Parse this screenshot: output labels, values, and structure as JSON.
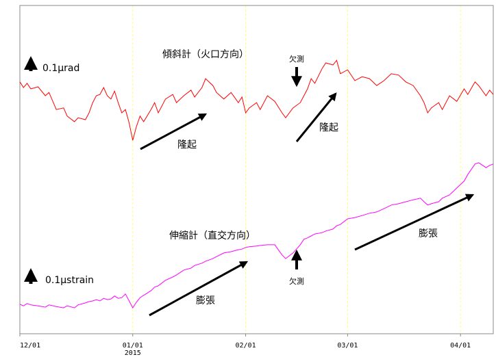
{
  "chart_data": {
    "type": "line",
    "x": [
      0,
      1,
      2,
      3,
      5,
      7,
      8,
      10,
      12,
      13,
      15,
      16,
      18,
      19,
      20,
      21,
      22,
      23,
      24,
      25,
      26,
      27,
      28,
      29,
      30,
      31,
      32,
      33,
      34,
      36,
      37,
      38,
      40,
      42,
      43,
      45,
      47,
      48,
      50,
      51,
      53,
      54,
      56,
      58,
      60,
      61,
      62,
      63,
      65,
      66,
      68,
      70,
      72,
      73,
      75,
      77,
      78,
      79,
      80,
      81,
      83,
      84,
      86,
      87,
      88,
      90,
      92,
      94,
      96,
      98,
      100,
      102,
      104,
      106,
      108,
      110,
      111,
      112,
      113,
      115,
      116,
      118,
      120,
      122,
      123,
      125,
      126,
      128,
      129,
      130
    ],
    "series": [
      {
        "name": "傾斜計（火口方向）",
        "color": "#ff0000",
        "values": [
          76.7,
          75.0,
          76.3,
          74.6,
          75.2,
          72.5,
          73.5,
          68.3,
          68.8,
          66.3,
          64.6,
          65.8,
          65.2,
          67.3,
          70.4,
          72.5,
          72.9,
          75.0,
          72.5,
          71.5,
          73.9,
          70.4,
          67.3,
          68.3,
          64.2,
          58.9,
          63.1,
          66.3,
          64.6,
          68.3,
          70.4,
          67.3,
          71.5,
          72.9,
          70.4,
          72.5,
          74.2,
          72.1,
          75.0,
          77.7,
          75.6,
          73.5,
          71.5,
          73.5,
          70.4,
          72.1,
          67.3,
          68.8,
          70.4,
          68.3,
          72.5,
          70.8,
          67.3,
          65.8,
          68.8,
          70.4,
          72.5,
          74.6,
          77.7,
          76.3,
          80.8,
          82.5,
          81.9,
          83.3,
          79.2,
          80.4,
          77.1,
          78.3,
          77.7,
          75.6,
          77.1,
          79.2,
          78.8,
          76.7,
          75.6,
          72.5,
          70.4,
          67.3,
          68.8,
          70.4,
          68.3,
          72.5,
          70.8,
          74.6,
          72.9,
          76.7,
          75.6,
          72.5,
          74.2,
          72.9
        ]
      },
      {
        "name": "伸縮計（直交方向）",
        "color": "#ff00ff",
        "values": [
          9.0,
          8.5,
          9.2,
          8.8,
          8.5,
          8.1,
          8.8,
          8.3,
          7.9,
          8.5,
          7.9,
          8.8,
          9.4,
          9.8,
          10.0,
          10.4,
          10.0,
          10.8,
          10.4,
          10.6,
          11.5,
          10.8,
          11.0,
          12.1,
          10.0,
          7.9,
          9.6,
          11.0,
          11.7,
          13.1,
          14.2,
          14.6,
          16.3,
          17.3,
          17.9,
          19.4,
          20.0,
          20.8,
          21.5,
          22.1,
          22.9,
          23.5,
          24.6,
          25.0,
          25.6,
          25.8,
          26.3,
          26.5,
          26.7,
          26.9,
          27.1,
          27.1,
          24.0,
          22.9,
          24.6,
          27.1,
          28.8,
          29.2,
          29.8,
          30.4,
          30.8,
          31.3,
          31.9,
          32.9,
          33.3,
          35.0,
          35.4,
          36.0,
          36.7,
          37.1,
          38.1,
          39.2,
          39.6,
          40.2,
          40.8,
          41.3,
          40.2,
          39.2,
          39.6,
          40.2,
          41.3,
          42.3,
          44.4,
          46.5,
          48.5,
          51.7,
          52.1,
          50.6,
          51.3,
          51.7
        ]
      }
    ],
    "xlim": [
      0,
      130
    ],
    "xticks": [
      {
        "value": 0,
        "label": "12/01"
      },
      {
        "value": 31,
        "label": "01/01"
      },
      {
        "value": 62,
        "label": "02/01"
      },
      {
        "value": 90,
        "label": "03/01"
      },
      {
        "value": 121,
        "label": "04/01"
      }
    ],
    "ylim": [
      0,
      100
    ],
    "grid": true,
    "grid_color": "#ffff66",
    "year_label": "2015",
    "annotations": [
      "0.1μrad",
      "欠測",
      "隆起",
      "隆起",
      "0.1μstrain",
      "欠測",
      "膨張",
      "膨張"
    ]
  }
}
